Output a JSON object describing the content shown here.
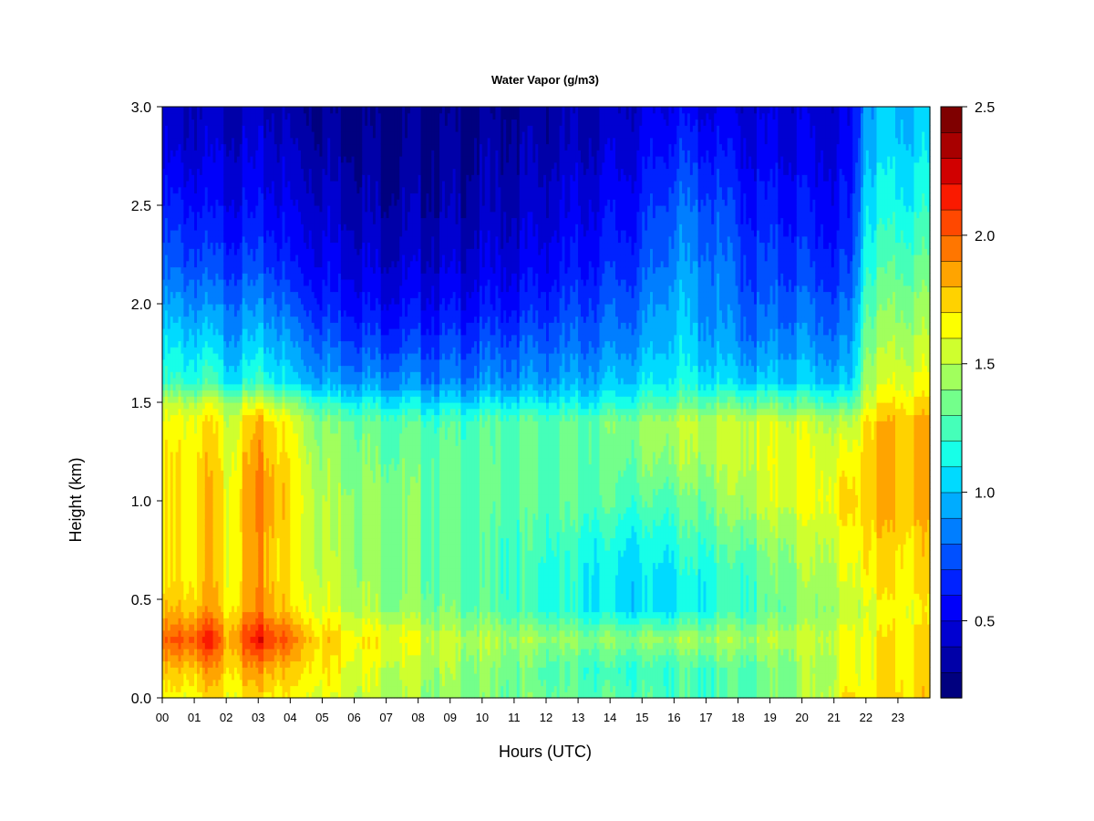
{
  "chart_data": {
    "type": "heatmap",
    "title": "Water Vapor (g/m3)",
    "xlabel": "Hours (UTC)",
    "ylabel": "Height (km)",
    "xlim": [
      0,
      24
    ],
    "ylim": [
      0,
      3
    ],
    "x_ticks": [
      "00",
      "01",
      "02",
      "03",
      "04",
      "05",
      "06",
      "07",
      "08",
      "09",
      "10",
      "11",
      "12",
      "13",
      "14",
      "15",
      "16",
      "17",
      "18",
      "19",
      "20",
      "21",
      "22",
      "23"
    ],
    "y_ticks": [
      "0.0",
      "0.5",
      "1.0",
      "1.5",
      "2.0",
      "2.5",
      "3.0"
    ],
    "colorbar": {
      "range": [
        0.2,
        2.5
      ],
      "ticks": [
        "0.5",
        "1.0",
        "1.5",
        "2.0",
        "2.5"
      ],
      "colors": [
        "#00007f",
        "#0000a8",
        "#0000d1",
        "#0000fa",
        "#0022ff",
        "#0050ff",
        "#007eff",
        "#00acff",
        "#00daff",
        "#17ffe8",
        "#45ffb9",
        "#73ff8b",
        "#a1ff5d",
        "#cfff2e",
        "#fdff00",
        "#ffd200",
        "#ffa400",
        "#ff7600",
        "#ff4800",
        "#fa1a00",
        "#d10000",
        "#a80000",
        "#7f0000"
      ]
    },
    "grid": false,
    "legend": "colorbar-right",
    "heights_km": [
      0.0,
      0.15,
      0.3,
      0.45,
      0.6,
      0.8,
      1.0,
      1.2,
      1.4,
      1.5,
      1.6,
      1.8,
      2.0,
      2.2,
      2.5,
      2.8,
      3.0
    ],
    "profiles": [
      {
        "hour": 0.0,
        "values": [
          1.6,
          1.75,
          1.95,
          1.75,
          1.65,
          1.65,
          1.65,
          1.65,
          1.6,
          1.5,
          1.2,
          1.05,
          0.9,
          0.75,
          0.6,
          0.45,
          0.4
        ]
      },
      {
        "hour": 1.0,
        "values": [
          1.65,
          1.8,
          2.05,
          1.8,
          1.7,
          1.7,
          1.7,
          1.7,
          1.65,
          1.5,
          1.2,
          1.05,
          0.9,
          0.75,
          0.6,
          0.45,
          0.4
        ]
      },
      {
        "hour": 1.5,
        "values": [
          1.7,
          1.85,
          2.15,
          1.85,
          1.8,
          1.8,
          1.8,
          1.75,
          1.7,
          1.55,
          1.25,
          1.05,
          0.85,
          0.7,
          0.55,
          0.45,
          0.4
        ]
      },
      {
        "hour": 2.0,
        "values": [
          1.65,
          1.75,
          1.85,
          1.7,
          1.65,
          1.65,
          1.65,
          1.6,
          1.55,
          1.45,
          1.1,
          0.95,
          0.85,
          0.7,
          0.55,
          0.45,
          0.4
        ]
      },
      {
        "hour": 3.0,
        "values": [
          1.7,
          1.85,
          2.15,
          1.9,
          1.85,
          1.85,
          1.9,
          1.85,
          1.8,
          1.55,
          1.2,
          1.0,
          0.85,
          0.7,
          0.55,
          0.45,
          0.4
        ]
      },
      {
        "hour": 3.5,
        "values": [
          1.7,
          1.85,
          2.1,
          1.85,
          1.8,
          1.8,
          1.85,
          1.8,
          1.75,
          1.5,
          1.15,
          1.0,
          0.85,
          0.7,
          0.55,
          0.45,
          0.4
        ]
      },
      {
        "hour": 4.0,
        "values": [
          1.65,
          1.75,
          1.95,
          1.7,
          1.65,
          1.65,
          1.7,
          1.65,
          1.6,
          1.4,
          1.05,
          0.9,
          0.75,
          0.6,
          0.5,
          0.4,
          0.35
        ]
      },
      {
        "hour": 5.0,
        "values": [
          1.6,
          1.7,
          1.75,
          1.6,
          1.55,
          1.5,
          1.5,
          1.45,
          1.4,
          1.2,
          0.95,
          0.8,
          0.65,
          0.55,
          0.45,
          0.35,
          0.3
        ]
      },
      {
        "hour": 7.0,
        "values": [
          1.5,
          1.55,
          1.65,
          1.45,
          1.4,
          1.4,
          1.4,
          1.35,
          1.3,
          1.1,
          0.9,
          0.7,
          0.55,
          0.45,
          0.35,
          0.3,
          0.25
        ]
      },
      {
        "hour": 9.0,
        "values": [
          1.4,
          1.45,
          1.5,
          1.35,
          1.3,
          1.3,
          1.3,
          1.3,
          1.25,
          1.05,
          0.85,
          0.7,
          0.55,
          0.45,
          0.35,
          0.3,
          0.25
        ]
      },
      {
        "hour": 11.0,
        "values": [
          1.35,
          1.35,
          1.45,
          1.25,
          1.25,
          1.25,
          1.3,
          1.3,
          1.3,
          1.1,
          0.9,
          0.75,
          0.6,
          0.5,
          0.4,
          0.35,
          0.3
        ]
      },
      {
        "hour": 13.0,
        "values": [
          1.3,
          1.25,
          1.4,
          1.15,
          1.15,
          1.2,
          1.3,
          1.3,
          1.3,
          1.1,
          0.95,
          0.8,
          0.7,
          0.6,
          0.5,
          0.4,
          0.35
        ]
      },
      {
        "hour": 15.0,
        "values": [
          1.25,
          1.2,
          1.4,
          1.05,
          1.05,
          1.1,
          1.25,
          1.35,
          1.4,
          1.2,
          1.05,
          0.9,
          0.8,
          0.7,
          0.6,
          0.5,
          0.45
        ]
      },
      {
        "hour": 16.0,
        "values": [
          1.25,
          1.25,
          1.45,
          1.1,
          1.1,
          1.2,
          1.3,
          1.45,
          1.5,
          1.3,
          1.15,
          1.05,
          1.0,
          0.9,
          0.8,
          0.65,
          0.55
        ]
      },
      {
        "hour": 17.0,
        "values": [
          1.25,
          1.25,
          1.45,
          1.15,
          1.15,
          1.25,
          1.35,
          1.45,
          1.5,
          1.3,
          1.1,
          0.95,
          0.9,
          0.85,
          0.75,
          0.6,
          0.5
        ]
      },
      {
        "hour": 18.5,
        "values": [
          1.3,
          1.3,
          1.45,
          1.25,
          1.25,
          1.35,
          1.5,
          1.55,
          1.55,
          1.3,
          1.0,
          0.85,
          0.75,
          0.7,
          0.6,
          0.5,
          0.45
        ]
      },
      {
        "hour": 20.0,
        "values": [
          1.45,
          1.45,
          1.5,
          1.4,
          1.45,
          1.5,
          1.6,
          1.6,
          1.55,
          1.3,
          1.05,
          0.9,
          0.8,
          0.7,
          0.6,
          0.5,
          0.45
        ]
      },
      {
        "hour": 21.0,
        "values": [
          1.55,
          1.5,
          1.55,
          1.45,
          1.5,
          1.55,
          1.65,
          1.6,
          1.5,
          1.25,
          1.0,
          0.85,
          0.75,
          0.65,
          0.55,
          0.5,
          0.45
        ]
      },
      {
        "hour": 21.5,
        "values": [
          1.7,
          1.6,
          1.6,
          1.5,
          1.55,
          1.6,
          1.7,
          1.6,
          1.45,
          1.2,
          0.95,
          0.85,
          0.75,
          0.65,
          0.55,
          0.5,
          0.45
        ]
      },
      {
        "hour": 22.0,
        "values": [
          1.7,
          1.65,
          1.65,
          1.6,
          1.7,
          1.75,
          1.8,
          1.8,
          1.75,
          1.6,
          1.5,
          1.4,
          1.3,
          1.2,
          1.1,
          1.0,
          0.95
        ]
      },
      {
        "hour": 23.0,
        "values": [
          1.75,
          1.7,
          1.7,
          1.65,
          1.7,
          1.75,
          1.8,
          1.8,
          1.8,
          1.7,
          1.6,
          1.5,
          1.4,
          1.3,
          1.15,
          1.05,
          1.0
        ]
      },
      {
        "hour": 24.0,
        "values": [
          1.75,
          1.7,
          1.7,
          1.65,
          1.7,
          1.75,
          1.8,
          1.8,
          1.8,
          1.7,
          1.6,
          1.5,
          1.4,
          1.3,
          1.15,
          1.05,
          1.0
        ]
      }
    ]
  }
}
